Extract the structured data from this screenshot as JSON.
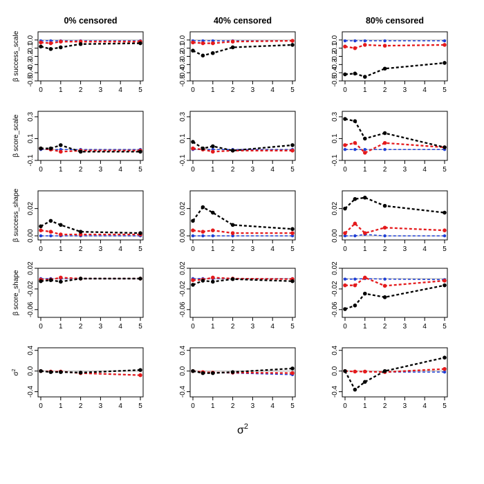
{
  "chart_data": {
    "type": "line",
    "x": [
      0,
      0.5,
      1,
      2,
      5
    ],
    "x_ticks": [
      "0",
      "1",
      "2",
      "3",
      "4",
      "5"
    ],
    "xlim": [
      0,
      5
    ],
    "xlabel": "σ",
    "xlabel_sup": "2",
    "columns": [
      "0% censored",
      "40% censored",
      "80% censored"
    ],
    "series_colors": {
      "black": "#000000",
      "red": "#e41a1c",
      "blue": "#1f3fd6",
      "reference": "#aaaaaa"
    },
    "rows": [
      {
        "ylabel": "β success_scale",
        "ylim": [
          -0.5,
          0.1
        ],
        "y_ticks": [
          "-0.5",
          "-0.4",
          "-0.3",
          "-0.2",
          "-0.1",
          "0.0"
        ],
        "y_tick_values": [
          -0.5,
          -0.4,
          -0.3,
          -0.2,
          -0.1,
          0.0
        ],
        "panels": [
          {
            "series": [
              {
                "name": "black",
                "values": [
                  -0.08,
                  -0.11,
                  -0.09,
                  -0.05,
                  -0.04
                ]
              },
              {
                "name": "red",
                "values": [
                  -0.03,
                  -0.04,
                  -0.02,
                  -0.02,
                  -0.02
                ]
              },
              {
                "name": "blue",
                "values": [
                  -0.01,
                  -0.01,
                  -0.01,
                  -0.01,
                  -0.01
                ]
              }
            ]
          },
          {
            "series": [
              {
                "name": "black",
                "values": [
                  -0.13,
                  -0.19,
                  -0.16,
                  -0.09,
                  -0.06
                ]
              },
              {
                "name": "red",
                "values": [
                  -0.03,
                  -0.04,
                  -0.04,
                  -0.02,
                  -0.01
                ]
              },
              {
                "name": "blue",
                "values": [
                  -0.01,
                  -0.01,
                  -0.01,
                  -0.01,
                  -0.01
                ]
              }
            ]
          },
          {
            "series": [
              {
                "name": "black",
                "values": [
                  -0.42,
                  -0.41,
                  -0.45,
                  -0.35,
                  -0.28
                ]
              },
              {
                "name": "red",
                "values": [
                  -0.08,
                  -0.1,
                  -0.06,
                  -0.07,
                  -0.06
                ]
              },
              {
                "name": "blue",
                "values": [
                  -0.01,
                  -0.01,
                  -0.01,
                  -0.01,
                  -0.01
                ]
              }
            ]
          }
        ]
      },
      {
        "ylabel": "β score_scale",
        "ylim": [
          -0.1,
          0.35
        ],
        "y_ticks": [
          "-0.1",
          "0.1",
          "0.3"
        ],
        "y_tick_values": [
          -0.1,
          0.1,
          0.3
        ],
        "panels": [
          {
            "series": [
              {
                "name": "black",
                "values": [
                  0.01,
                  0.01,
                  0.04,
                  -0.02,
                  -0.02
                ]
              },
              {
                "name": "red",
                "values": [
                  0.01,
                  0.0,
                  -0.02,
                  -0.01,
                  -0.01
                ]
              },
              {
                "name": "blue",
                "values": [
                  0.0,
                  0.0,
                  0.0,
                  0.0,
                  0.0
                ]
              }
            ]
          },
          {
            "series": [
              {
                "name": "black",
                "values": [
                  0.07,
                  0.01,
                  0.03,
                  -0.01,
                  0.04
                ]
              },
              {
                "name": "red",
                "values": [
                  0.01,
                  0.0,
                  -0.02,
                  -0.01,
                  -0.01
                ]
              },
              {
                "name": "blue",
                "values": [
                  0.0,
                  0.0,
                  0.0,
                  0.0,
                  0.0
                ]
              }
            ]
          },
          {
            "series": [
              {
                "name": "black",
                "values": [
                  0.28,
                  0.26,
                  0.1,
                  0.15,
                  0.02
                ]
              },
              {
                "name": "red",
                "values": [
                  0.04,
                  0.06,
                  -0.03,
                  0.06,
                  0.02
                ]
              },
              {
                "name": "blue",
                "values": [
                  0.0,
                  0.0,
                  0.0,
                  0.0,
                  0.0
                ]
              }
            ]
          }
        ]
      },
      {
        "ylabel": "β success_shape",
        "ylim": [
          -0.003,
          0.033
        ],
        "y_ticks": [
          "0.00",
          "0.02"
        ],
        "y_tick_values": [
          0.0,
          0.02
        ],
        "panels": [
          {
            "series": [
              {
                "name": "black",
                "values": [
                  0.007,
                  0.011,
                  0.008,
                  0.003,
                  0.002
                ]
              },
              {
                "name": "red",
                "values": [
                  0.004,
                  0.003,
                  0.001,
                  0.001,
                  0.001
                ]
              },
              {
                "name": "blue",
                "values": [
                  0.0,
                  0.0,
                  0.0,
                  0.0,
                  0.0
                ]
              }
            ]
          },
          {
            "series": [
              {
                "name": "black",
                "values": [
                  0.011,
                  0.021,
                  0.017,
                  0.008,
                  0.005
                ]
              },
              {
                "name": "red",
                "values": [
                  0.004,
                  0.003,
                  0.004,
                  0.002,
                  0.002
                ]
              },
              {
                "name": "blue",
                "values": [
                  0.0,
                  0.0,
                  0.0,
                  0.0,
                  0.0
                ]
              }
            ]
          },
          {
            "series": [
              {
                "name": "black",
                "values": [
                  0.02,
                  0.027,
                  0.028,
                  0.022,
                  0.017
                ]
              },
              {
                "name": "red",
                "values": [
                  0.002,
                  0.009,
                  0.002,
                  0.006,
                  0.004
                ]
              },
              {
                "name": "blue",
                "values": [
                  0.0,
                  0.0,
                  0.001,
                  0.0,
                  0.0
                ]
              }
            ]
          }
        ]
      },
      {
        "ylabel": "β score_shape",
        "ylim": [
          -0.075,
          0.02
        ],
        "y_ticks": [
          "-0.06",
          "-0.02",
          "0.02"
        ],
        "y_tick_values": [
          -0.06,
          -0.02,
          0.02
        ],
        "panels": [
          {
            "series": [
              {
                "name": "black",
                "values": [
                  -0.005,
                  -0.003,
                  -0.006,
                  0.0,
                  0.0
                ]
              },
              {
                "name": "red",
                "values": [
                  -0.002,
                  -0.002,
                  0.002,
                  0.0,
                  0.0
                ]
              },
              {
                "name": "blue",
                "values": [
                  0.0,
                  0.0,
                  0.0,
                  0.0,
                  0.0
                ]
              }
            ]
          },
          {
            "series": [
              {
                "name": "black",
                "values": [
                  -0.012,
                  -0.004,
                  -0.006,
                  -0.001,
                  -0.005
                ]
              },
              {
                "name": "red",
                "values": [
                  -0.003,
                  -0.002,
                  0.002,
                  0.0,
                  -0.001
                ]
              },
              {
                "name": "blue",
                "values": [
                  0.0,
                  0.0,
                  0.0,
                  0.0,
                  0.0
                ]
              }
            ]
          },
          {
            "series": [
              {
                "name": "black",
                "values": [
                  -0.059,
                  -0.052,
                  -0.029,
                  -0.036,
                  -0.013
                ]
              },
              {
                "name": "red",
                "values": [
                  -0.013,
                  -0.013,
                  0.002,
                  -0.014,
                  -0.004
                ]
              },
              {
                "name": "blue",
                "values": [
                  -0.001,
                  -0.001,
                  0.0,
                  -0.001,
                  -0.002
                ]
              }
            ]
          }
        ]
      },
      {
        "ylabel": "σ",
        "ylabel_sup": "2",
        "ylim": [
          -0.5,
          0.45
        ],
        "y_ticks": [
          "-0.4",
          "0.0",
          "0.4"
        ],
        "y_tick_values": [
          -0.4,
          0.0,
          0.4
        ],
        "panels": [
          {
            "series": [
              {
                "name": "black",
                "values": [
                  0.0,
                  -0.02,
                  -0.02,
                  -0.03,
                  0.02
                ]
              },
              {
                "name": "red",
                "values": [
                  0.0,
                  -0.01,
                  -0.01,
                  -0.04,
                  -0.08
                ]
              },
              {
                "name": "blue",
                "values": [
                  0.0,
                  -0.01,
                  -0.01,
                  -0.04,
                  -0.08
                ]
              }
            ]
          },
          {
            "series": [
              {
                "name": "black",
                "values": [
                  0.0,
                  -0.04,
                  -0.04,
                  -0.02,
                  0.05
                ]
              },
              {
                "name": "red",
                "values": [
                  0.0,
                  -0.02,
                  -0.03,
                  -0.03,
                  -0.04
                ]
              },
              {
                "name": "blue",
                "values": [
                  0.0,
                  -0.02,
                  -0.03,
                  -0.04,
                  -0.07
                ]
              }
            ]
          },
          {
            "series": [
              {
                "name": "black",
                "values": [
                  0.0,
                  -0.36,
                  -0.21,
                  0.0,
                  0.26
                ]
              },
              {
                "name": "red",
                "values": [
                  0.0,
                  -0.01,
                  -0.01,
                  -0.02,
                  0.04
                ]
              },
              {
                "name": "blue",
                "values": [
                  0.0,
                  -0.01,
                  -0.01,
                  -0.02,
                  -0.02
                ]
              }
            ]
          }
        ]
      }
    ]
  }
}
